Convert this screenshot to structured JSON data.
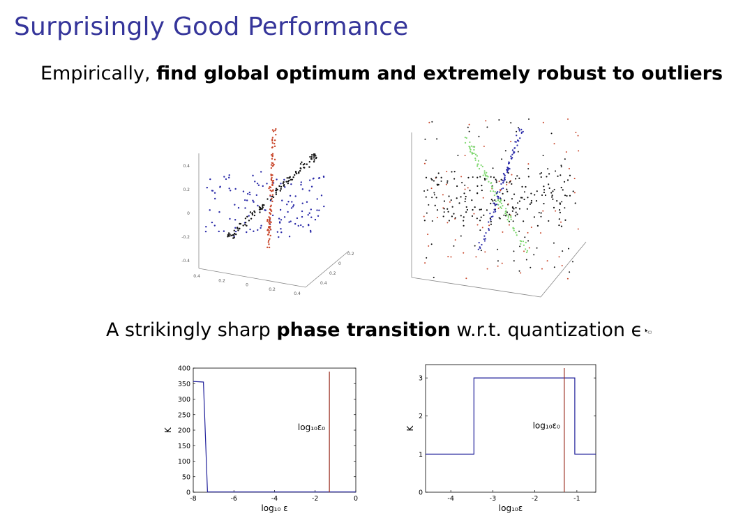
{
  "slide": {
    "title": "Surprisingly Good Performance",
    "line1_normal": "Empirically, ",
    "line1_bold": "find global optimum and extremely robust to outliers",
    "line2_a": "A strikingly sharp ",
    "line2_bold": "phase transition",
    "line2_b": " w.r.t. quantization ",
    "line2_symbol": "ϵ",
    "cursor_icon": "mouse-pointer-icon"
  },
  "scatter3d_left": {
    "y_ticks": [
      "0.4",
      "0.2",
      "0",
      "-0.2",
      "-0.4"
    ],
    "x_ticks": [
      "0.4",
      "0.2",
      "0",
      "0.2",
      "0.4"
    ],
    "depth_ticks": [
      "0.2",
      "0",
      "0.2",
      "0.4"
    ],
    "colors": {
      "line": "#111111",
      "vertical": "#c8462a",
      "plane": "#2a2aa8"
    }
  },
  "scatter3d_right": {
    "colors": {
      "black": "#111111",
      "blue": "#2a2aa8",
      "green": "#7bd66b",
      "red": "#c8462a"
    }
  },
  "chart_data": [
    {
      "type": "line",
      "x": [
        -8,
        -7.5,
        -7.5,
        -7.3,
        0
      ],
      "values": [
        357,
        355,
        354,
        1,
        1
      ],
      "xlabel": "log₁₀ ε",
      "ylabel": "K",
      "xlim": [
        -8,
        0
      ],
      "ylim": [
        0,
        400
      ],
      "x_ticks": [
        "-8",
        "-6",
        "-4",
        "-2",
        "0"
      ],
      "y_ticks": [
        "0",
        "50",
        "100",
        "150",
        "200",
        "250",
        "300",
        "350",
        "400"
      ],
      "vline": {
        "x": -1.3,
        "label": "log₁₀ε₀"
      },
      "colors": {
        "line": "#1f1f9a",
        "vline": "#9b2d20"
      }
    },
    {
      "type": "line",
      "x": [
        -4.6,
        -3.45,
        -3.45,
        -1.05,
        -1.05,
        -0.55
      ],
      "values": [
        1,
        1,
        3,
        3,
        1,
        1
      ],
      "xlabel": "log₁₀ε",
      "ylabel": "K",
      "xlim": [
        -4.6,
        -0.55
      ],
      "ylim": [
        0,
        3.35
      ],
      "x_ticks": [
        "-4",
        "-3",
        "-2",
        "-1"
      ],
      "y_ticks": [
        "0",
        "1",
        "2",
        "3"
      ],
      "vline": {
        "x": -1.3,
        "label": "log₁₀ε₀"
      },
      "colors": {
        "line": "#1f1f9a",
        "vline": "#9b2d20"
      }
    }
  ]
}
